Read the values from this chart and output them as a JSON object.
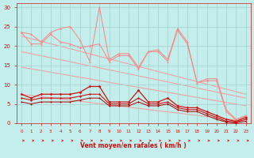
{
  "bg_color": "#c4eeec",
  "grid_color": "#a8d4d2",
  "xlabel": "Vent moyen/en rafales ( km/h )",
  "xlim": [
    -0.5,
    23.5
  ],
  "ylim": [
    0,
    31
  ],
  "yticks": [
    0,
    5,
    10,
    15,
    20,
    25,
    30
  ],
  "xticks": [
    0,
    1,
    2,
    3,
    4,
    5,
    6,
    7,
    8,
    9,
    10,
    11,
    12,
    13,
    14,
    15,
    16,
    17,
    18,
    19,
    20,
    21,
    22,
    23
  ],
  "pink_line1_x": [
    0,
    1,
    2,
    3,
    4,
    5,
    6,
    7,
    8,
    9,
    10,
    11,
    12,
    13,
    14,
    15,
    16,
    17,
    18,
    19,
    20,
    21,
    22,
    23
  ],
  "pink_line1_y": [
    23.5,
    23.0,
    21.0,
    23.5,
    24.5,
    25.0,
    21.5,
    16.0,
    30.0,
    16.5,
    18.0,
    18.0,
    14.5,
    18.5,
    19.0,
    16.5,
    24.5,
    21.0,
    10.5,
    11.5,
    11.5,
    3.5,
    1.0,
    2.0
  ],
  "pink_line1_color": "#f09090",
  "pink_line2_x": [
    0,
    1,
    2,
    3,
    4,
    5,
    6,
    7,
    8,
    9,
    10,
    11,
    12,
    13,
    14,
    15,
    16,
    17,
    18,
    19,
    20,
    21,
    22,
    23
  ],
  "pink_line2_y": [
    23.5,
    20.5,
    20.5,
    23.0,
    21.0,
    20.5,
    19.5,
    20.0,
    20.5,
    16.0,
    17.5,
    17.5,
    14.0,
    18.5,
    18.5,
    16.0,
    24.0,
    20.5,
    10.5,
    11.0,
    11.0,
    3.0,
    0.8,
    1.8
  ],
  "pink_line2_color": "#f09090",
  "trend1_x": [
    0,
    23
  ],
  "trend1_y": [
    22.5,
    7.5
  ],
  "trend2_x": [
    0,
    23
  ],
  "trend2_y": [
    18.5,
    6.5
  ],
  "trend3_x": [
    0,
    23
  ],
  "trend3_y": [
    14.5,
    4.5
  ],
  "trend4_x": [
    0,
    23
  ],
  "trend4_y": [
    7.5,
    0.5
  ],
  "trend_color": "#f0a0a0",
  "red_line1_x": [
    0,
    1,
    2,
    3,
    4,
    5,
    6,
    7,
    8,
    9,
    10,
    11,
    12,
    13,
    14,
    15,
    16,
    17,
    18,
    19,
    20,
    21,
    22,
    23
  ],
  "red_line1_y": [
    7.5,
    6.5,
    7.5,
    7.5,
    7.5,
    7.5,
    8.0,
    9.5,
    9.5,
    5.5,
    5.5,
    5.5,
    8.5,
    5.5,
    5.5,
    6.5,
    4.5,
    4.0,
    4.0,
    3.0,
    2.0,
    1.0,
    0.5,
    1.5
  ],
  "red_line1_color": "#cc1111",
  "red_line2_x": [
    0,
    1,
    2,
    3,
    4,
    5,
    6,
    7,
    8,
    9,
    10,
    11,
    12,
    13,
    14,
    15,
    16,
    17,
    18,
    19,
    20,
    21,
    22,
    23
  ],
  "red_line2_y": [
    6.5,
    6.0,
    6.5,
    6.5,
    6.5,
    6.5,
    7.0,
    7.5,
    7.5,
    5.0,
    5.0,
    5.0,
    6.5,
    5.0,
    5.0,
    5.5,
    4.0,
    3.5,
    3.5,
    2.5,
    1.5,
    0.5,
    0.3,
    1.0
  ],
  "red_line2_color": "#cc1111",
  "red_line3_x": [
    0,
    1,
    2,
    3,
    4,
    5,
    6,
    7,
    8,
    9,
    10,
    11,
    12,
    13,
    14,
    15,
    16,
    17,
    18,
    19,
    20,
    21,
    22,
    23
  ],
  "red_line3_y": [
    5.5,
    5.0,
    5.5,
    5.5,
    5.5,
    5.5,
    6.0,
    6.5,
    6.5,
    4.5,
    4.5,
    4.5,
    5.5,
    4.5,
    4.5,
    5.0,
    3.5,
    3.0,
    3.0,
    2.0,
    1.0,
    0.3,
    0.1,
    0.5
  ],
  "red_line3_color": "#aa0000",
  "arrow_color": "#cc1111",
  "tick_color": "#cc1111",
  "label_color": "#cc1111"
}
